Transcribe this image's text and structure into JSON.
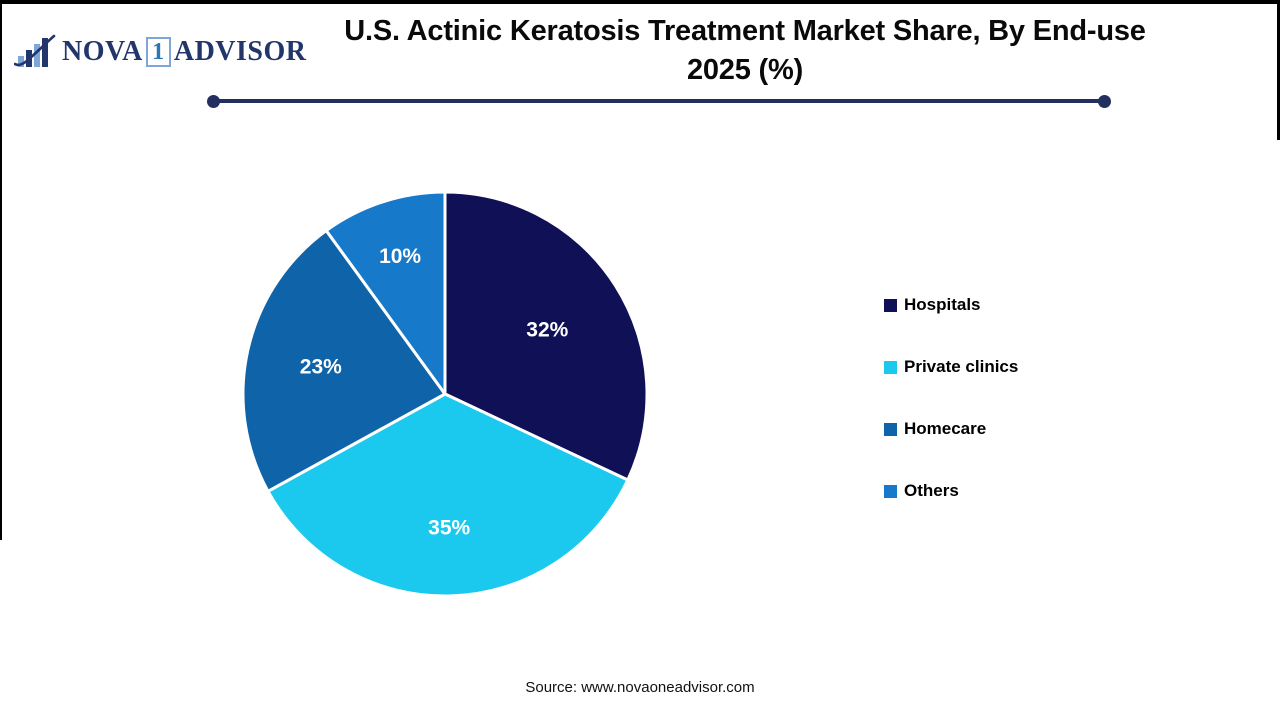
{
  "logo": {
    "brand_part1": "NOVA",
    "brand_num": "1",
    "brand_part2": "ADVISOR",
    "icon": "bar-chart-swoosh-icon",
    "navy": "#22366B",
    "light_blue": "#7EA6D8"
  },
  "title": {
    "line1": "U.S. Actinic Keratosis Treatment Market Share, By End-use",
    "line2": "2025 (%)"
  },
  "chart_data": {
    "type": "pie",
    "title": "U.S. Actinic Keratosis Treatment Market Share, By End-use 2025 (%)",
    "start_angle_deg": 0,
    "direction": "clockwise",
    "slices": [
      {
        "label": "Hospitals",
        "value": 32,
        "display": "32%",
        "color": "#0F1056"
      },
      {
        "label": "Private clinics",
        "value": 35,
        "display": "35%",
        "color": "#1BC9EE"
      },
      {
        "label": "Homecare",
        "value": 23,
        "display": "23%",
        "color": "#0F63A8"
      },
      {
        "label": "Others",
        "value": 10,
        "display": "10%",
        "color": "#1779C9"
      }
    ],
    "label_color": "#FFFFFF",
    "slice_border_color": "#FFFFFF",
    "legend_position": "right"
  },
  "divider_color": "#232F5E",
  "source": {
    "text": "Source: www.novaoneadvisor.com"
  }
}
